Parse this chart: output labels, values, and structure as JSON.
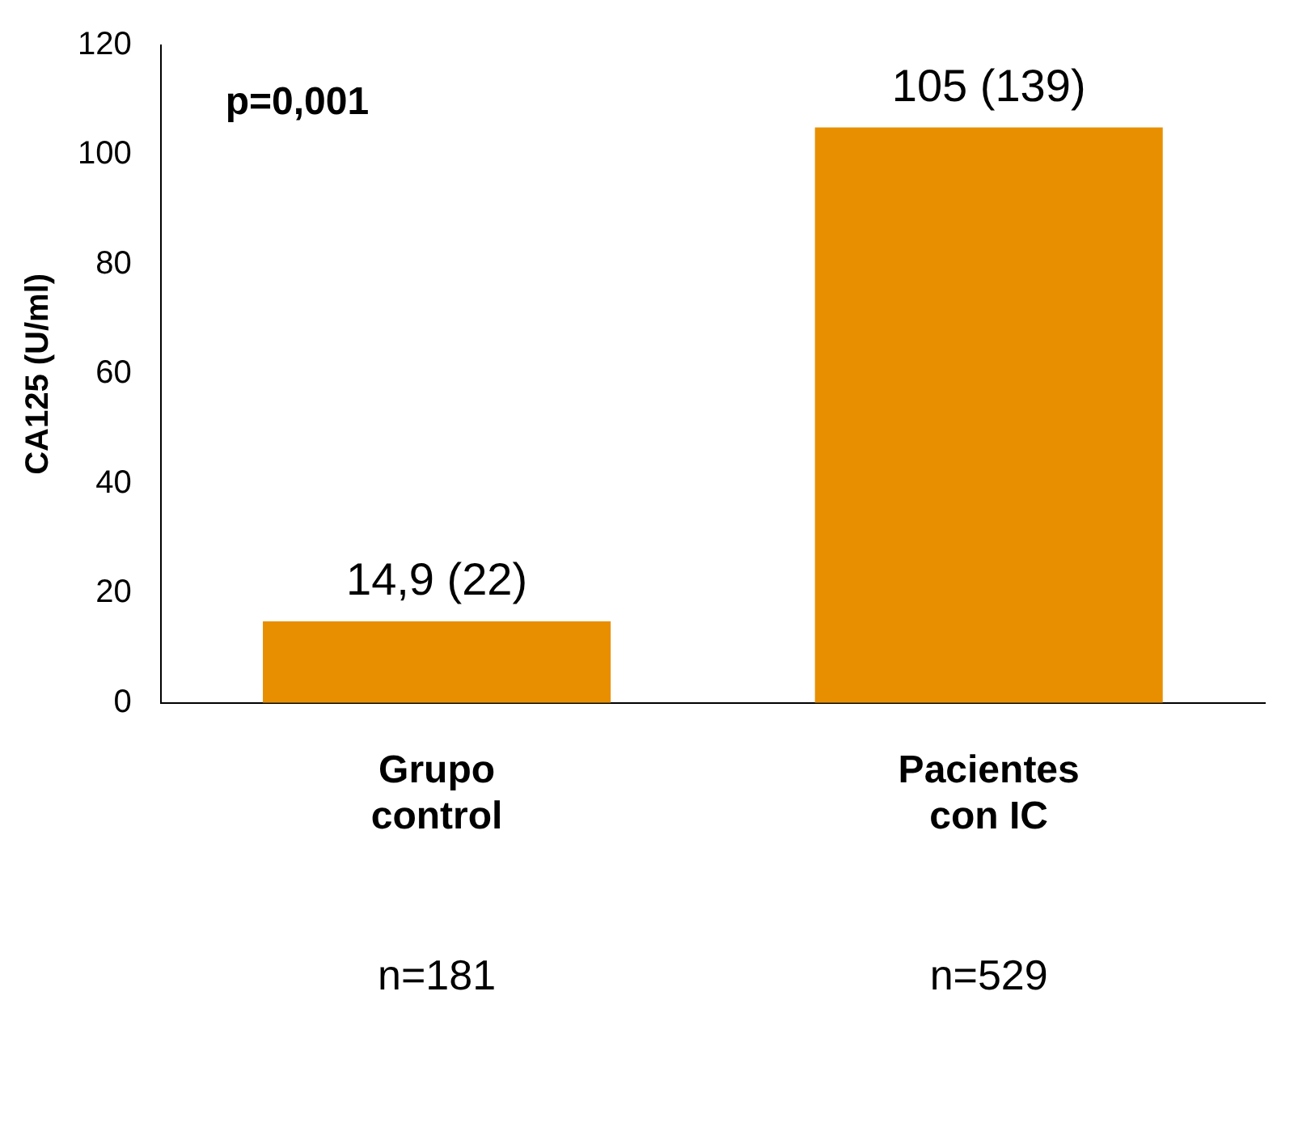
{
  "chart_data": {
    "type": "bar",
    "ylabel": "CA125 (U/ml)",
    "categories": [
      "Grupo control",
      "Pacientes con IC"
    ],
    "values": [
      14.9,
      105
    ],
    "value_labels": [
      "14,9 (22)",
      "105 (139)"
    ],
    "color": "#e88f00",
    "ylim": [
      0,
      120
    ],
    "yticks": [
      0,
      20,
      40,
      60,
      80,
      100,
      120
    ],
    "grid": false,
    "legend": false,
    "annotations": [
      "p=0,001",
      "n=181",
      "n=529"
    ]
  }
}
